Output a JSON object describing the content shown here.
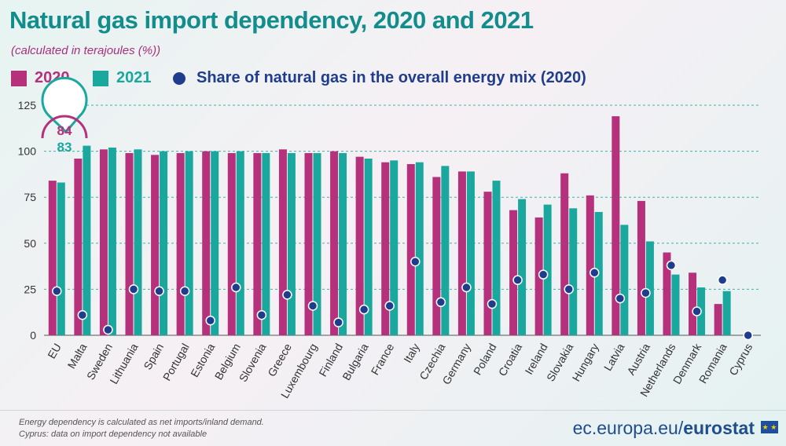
{
  "header": {
    "title": "Natural gas import dependency, 2020 and 2021",
    "subtitle": "(calculated in terajoules (%))"
  },
  "legend": {
    "label_2020": "2020",
    "label_2021": "2021",
    "label_share": "Share of natural gas in the overall energy mix (2020)"
  },
  "colors": {
    "bar_2020": "#b5317c",
    "bar_2021": "#1aa89e",
    "dot": "#1f3d8c",
    "grid": "#3fb3a8",
    "axis_text": "#333333"
  },
  "callout": {
    "value_2020": "84",
    "value_2021": "83"
  },
  "chart_data": {
    "type": "bar",
    "title": "Natural gas import dependency, 2020 and 2021",
    "ylim": [
      0,
      125
    ],
    "yticks": [
      0,
      25,
      50,
      75,
      100,
      125
    ],
    "grid": true,
    "categories": [
      "EU",
      "Malta",
      "Sweden",
      "Lithuania",
      "Spain",
      "Portugal",
      "Estonia",
      "Belgium",
      "Slovenia",
      "Greece",
      "Luxembourg",
      "Finland",
      "Bulgaria",
      "France",
      "Italy",
      "Czechia",
      "Germany",
      "Poland",
      "Croatia",
      "Ireland",
      "Slovakia",
      "Hungary",
      "Latvia",
      "Austria",
      "Netherlands",
      "Denmark",
      "Romania",
      "Cyprus"
    ],
    "series": [
      {
        "name": "2020",
        "values": [
          84,
          96,
          101,
          99,
          98,
          99,
          100,
          99,
          99,
          101,
          99,
          100,
          97,
          94,
          93,
          86,
          89,
          78,
          68,
          64,
          88,
          76,
          119,
          73,
          45,
          34,
          17,
          null
        ]
      },
      {
        "name": "2021",
        "values": [
          83,
          103,
          102,
          101,
          100,
          100,
          100,
          100,
          99,
          99,
          99,
          99,
          96,
          95,
          94,
          92,
          89,
          84,
          74,
          71,
          69,
          67,
          60,
          51,
          33,
          26,
          24,
          null
        ]
      },
      {
        "name": "Share of natural gas in the overall energy mix (2020)",
        "values": [
          24,
          11,
          3,
          25,
          24,
          24,
          8,
          26,
          11,
          22,
          16,
          7,
          14,
          16,
          40,
          18,
          26,
          17,
          30,
          33,
          25,
          34,
          20,
          23,
          38,
          13,
          30,
          0
        ]
      }
    ]
  },
  "footer": {
    "note1": "Energy dependency is calculated as net imports/inland demand.",
    "note2": "Cyprus: data on import dependency not available",
    "brand_prefix": "ec.europa.eu/",
    "brand_bold": "eurostat"
  }
}
